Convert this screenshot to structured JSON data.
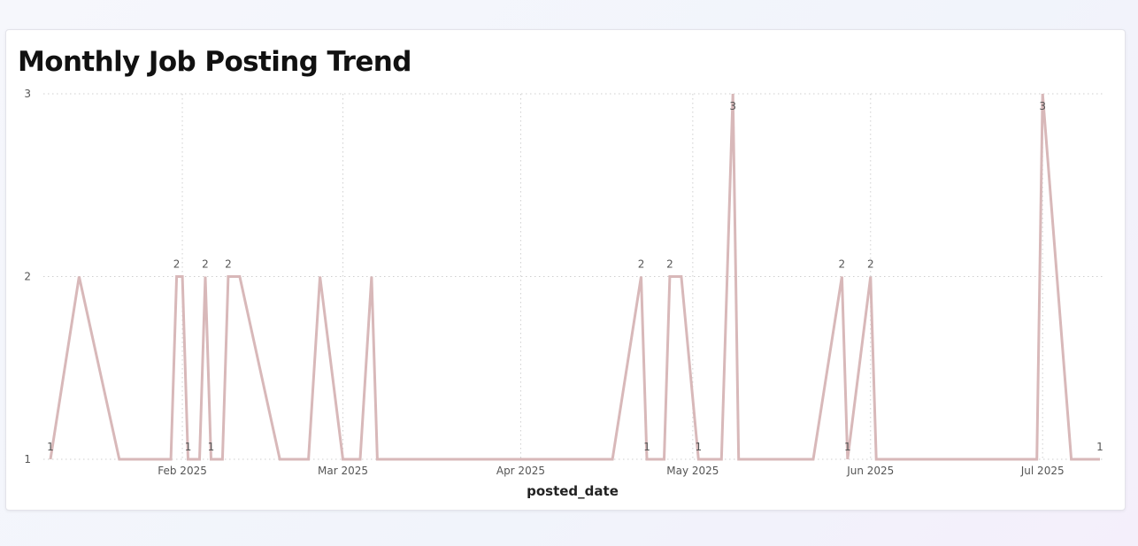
{
  "title": "Monthly Job Posting Trend",
  "colors": {
    "line": "#d8b8b9",
    "grid": "#cfcfcf",
    "tick": "#555555",
    "label": "#555555"
  },
  "chart_data": {
    "type": "line",
    "title": "Monthly Job Posting Trend",
    "xlabel": "posted_date",
    "ylabel": "",
    "ylim": [
      1,
      3
    ],
    "xlim": [
      "2025-01-09",
      "2025-07-11"
    ],
    "grid": true,
    "y_ticks": [
      1,
      2,
      3
    ],
    "x_ticks": [
      {
        "date": "2025-02-01",
        "label": "Feb 2025"
      },
      {
        "date": "2025-03-01",
        "label": "Mar 2025"
      },
      {
        "date": "2025-04-01",
        "label": "Apr 2025"
      },
      {
        "date": "2025-05-01",
        "label": "May 2025"
      },
      {
        "date": "2025-06-01",
        "label": "Jun 2025"
      },
      {
        "date": "2025-07-01",
        "label": "Jul 2025"
      }
    ],
    "points": [
      {
        "x": "2025-01-09",
        "y": 1,
        "label": "1"
      },
      {
        "x": "2025-01-14",
        "y": 2
      },
      {
        "x": "2025-01-21",
        "y": 1
      },
      {
        "x": "2025-01-30",
        "y": 1
      },
      {
        "x": "2025-01-31",
        "y": 2,
        "label": "2"
      },
      {
        "x": "2025-02-01",
        "y": 2
      },
      {
        "x": "2025-02-02",
        "y": 1,
        "label": "1"
      },
      {
        "x": "2025-02-04",
        "y": 1
      },
      {
        "x": "2025-02-05",
        "y": 2,
        "label": "2"
      },
      {
        "x": "2025-02-06",
        "y": 1,
        "label": "1"
      },
      {
        "x": "2025-02-08",
        "y": 1
      },
      {
        "x": "2025-02-09",
        "y": 2,
        "label": "2"
      },
      {
        "x": "2025-02-11",
        "y": 2
      },
      {
        "x": "2025-02-18",
        "y": 1
      },
      {
        "x": "2025-02-23",
        "y": 1
      },
      {
        "x": "2025-02-25",
        "y": 2
      },
      {
        "x": "2025-03-01",
        "y": 1
      },
      {
        "x": "2025-03-04",
        "y": 1
      },
      {
        "x": "2025-03-06",
        "y": 2
      },
      {
        "x": "2025-03-07",
        "y": 1
      },
      {
        "x": "2025-04-17",
        "y": 1
      },
      {
        "x": "2025-04-22",
        "y": 2,
        "label": "2"
      },
      {
        "x": "2025-04-23",
        "y": 1,
        "label": "1"
      },
      {
        "x": "2025-04-26",
        "y": 1
      },
      {
        "x": "2025-04-27",
        "y": 2,
        "label": "2"
      },
      {
        "x": "2025-04-29",
        "y": 2
      },
      {
        "x": "2025-05-02",
        "y": 1,
        "label": "1"
      },
      {
        "x": "2025-05-06",
        "y": 1
      },
      {
        "x": "2025-05-08",
        "y": 3,
        "label": "3"
      },
      {
        "x": "2025-05-09",
        "y": 1
      },
      {
        "x": "2025-05-22",
        "y": 1
      },
      {
        "x": "2025-05-27",
        "y": 2,
        "label": "2"
      },
      {
        "x": "2025-05-28",
        "y": 1,
        "label": "1"
      },
      {
        "x": "2025-06-01",
        "y": 2,
        "label": "2"
      },
      {
        "x": "2025-06-02",
        "y": 1
      },
      {
        "x": "2025-06-30",
        "y": 1
      },
      {
        "x": "2025-07-01",
        "y": 3,
        "label": "3"
      },
      {
        "x": "2025-07-06",
        "y": 1
      },
      {
        "x": "2025-07-11",
        "y": 1,
        "label": "1"
      }
    ]
  }
}
